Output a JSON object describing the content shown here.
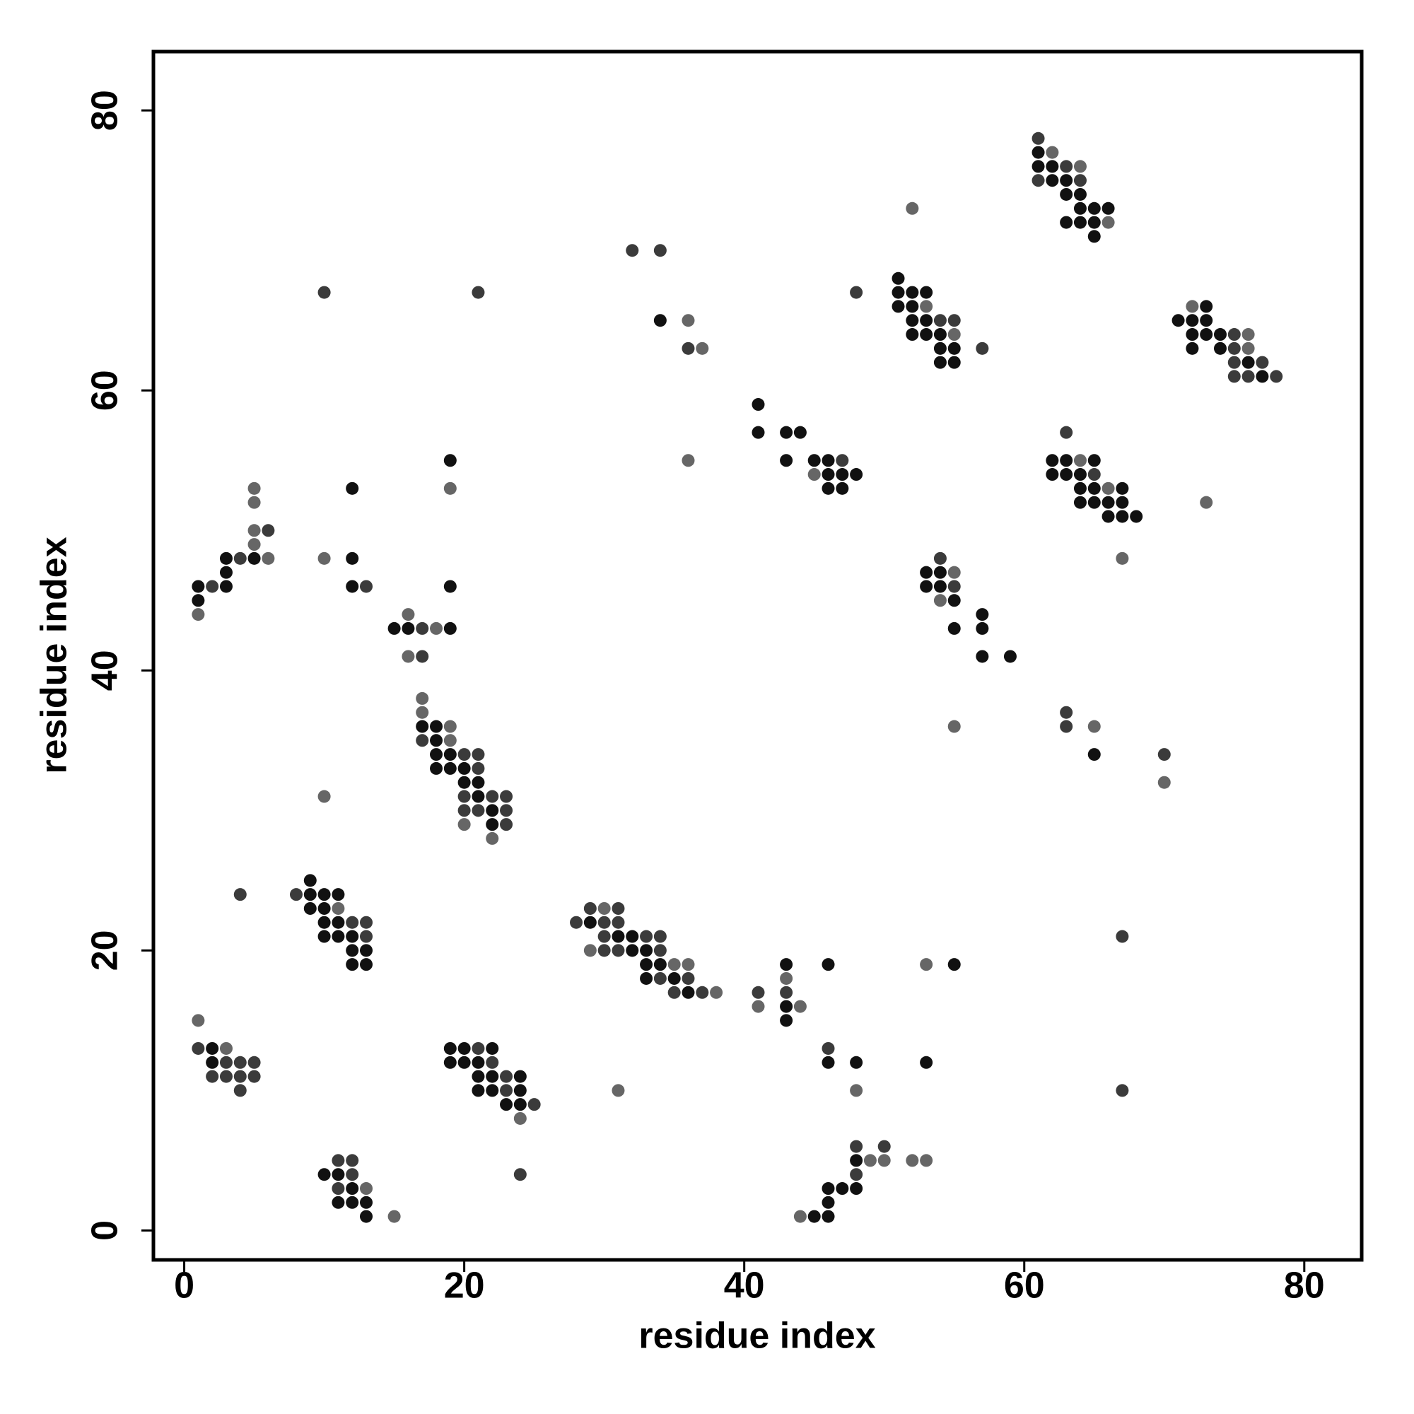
{
  "chart_data": {
    "type": "scatter",
    "xlabel": "residue index",
    "ylabel": "residue index",
    "xlim": [
      -2.2,
      84.1
    ],
    "ylim": [
      -2.1,
      84.2
    ],
    "xticks": [
      0,
      20,
      40,
      60,
      80
    ],
    "yticks": [
      0,
      20,
      40,
      60,
      80
    ],
    "x": [
      1,
      1,
      2,
      3,
      2,
      3,
      4,
      5,
      2,
      3,
      4,
      5,
      4,
      4,
      8,
      9,
      9,
      10,
      11,
      9,
      10,
      11,
      10,
      11,
      12,
      13,
      10,
      11,
      12,
      13,
      12,
      13,
      12,
      13,
      10,
      11,
      12,
      11,
      12,
      11,
      12,
      13,
      11,
      12,
      13,
      13,
      15,
      19,
      20,
      21,
      22,
      19,
      20,
      21,
      22,
      21,
      22,
      23,
      24,
      21,
      22,
      23,
      24,
      23,
      24,
      25,
      24,
      24,
      1,
      2,
      3,
      1,
      1,
      3,
      3,
      4,
      5,
      6,
      5,
      5,
      6,
      5,
      5,
      10,
      10,
      10,
      12,
      12,
      12,
      13,
      15,
      16,
      17,
      18,
      19,
      16,
      16,
      17,
      19,
      19,
      19,
      21,
      17,
      17,
      17,
      18,
      19,
      17,
      18,
      19,
      18,
      19,
      20,
      21,
      18,
      19,
      20,
      21,
      20,
      21,
      20,
      21,
      22,
      23,
      20,
      21,
      22,
      23,
      20,
      22,
      23,
      22,
      28,
      29,
      30,
      31,
      29,
      30,
      31,
      29,
      30,
      31,
      30,
      31,
      32,
      33,
      34,
      32,
      33,
      34,
      33,
      34,
      35,
      36,
      33,
      34,
      35,
      36,
      35,
      36,
      37,
      38,
      31,
      32,
      34,
      34,
      36,
      36,
      37,
      36,
      41,
      41,
      43,
      43,
      43,
      43,
      44,
      43,
      46,
      46,
      46,
      48,
      48,
      44,
      45,
      46,
      46,
      46,
      47,
      48,
      48,
      48,
      48,
      49,
      50,
      50,
      52,
      53,
      53,
      55,
      53,
      41,
      41,
      43,
      44,
      43,
      45,
      46,
      47,
      45,
      46,
      47,
      48,
      46,
      47,
      48,
      51,
      51,
      52,
      53,
      51,
      52,
      53,
      52,
      53,
      54,
      55,
      52,
      53,
      54,
      55,
      54,
      55,
      54,
      55,
      57,
      52,
      53,
      54,
      54,
      55,
      53,
      54,
      55,
      54,
      55,
      55,
      57,
      57,
      57,
      59,
      55,
      61,
      61,
      62,
      61,
      62,
      63,
      64,
      61,
      62,
      63,
      64,
      63,
      64,
      64,
      65,
      66,
      63,
      64,
      65,
      66,
      65,
      62,
      63,
      64,
      65,
      62,
      63,
      64,
      65,
      63,
      64,
      65,
      66,
      67,
      64,
      65,
      66,
      67,
      66,
      67,
      68,
      67,
      73,
      63,
      63,
      65,
      65,
      70,
      70,
      67,
      67,
      71,
      72,
      73,
      72,
      73,
      72,
      73,
      74,
      75,
      76,
      72,
      74,
      75,
      76,
      75,
      76,
      77,
      75,
      76,
      77,
      78
    ],
    "values": [
      15,
      13,
      13,
      13,
      12,
      12,
      12,
      12,
      11,
      11,
      11,
      11,
      10,
      24,
      24,
      25,
      24,
      24,
      24,
      23,
      23,
      23,
      22,
      22,
      22,
      22,
      21,
      21,
      21,
      21,
      20,
      20,
      19,
      19,
      4,
      5,
      5,
      4,
      4,
      3,
      3,
      3,
      2,
      2,
      2,
      1,
      1,
      13,
      13,
      13,
      13,
      12,
      12,
      12,
      12,
      11,
      11,
      11,
      11,
      10,
      10,
      10,
      10,
      9,
      9,
      9,
      8,
      4,
      46,
      46,
      46,
      45,
      44,
      47,
      48,
      48,
      48,
      48,
      49,
      50,
      50,
      52,
      53,
      67,
      48,
      31,
      53,
      48,
      46,
      46,
      43,
      43,
      43,
      43,
      43,
      44,
      41,
      41,
      46,
      55,
      53,
      67,
      38,
      37,
      36,
      36,
      36,
      35,
      35,
      35,
      34,
      34,
      34,
      34,
      33,
      33,
      33,
      33,
      32,
      32,
      31,
      31,
      31,
      31,
      30,
      30,
      30,
      30,
      29,
      29,
      29,
      28,
      22,
      23,
      23,
      23,
      22,
      22,
      22,
      20,
      20,
      20,
      21,
      21,
      21,
      21,
      21,
      20,
      20,
      20,
      19,
      19,
      19,
      19,
      18,
      18,
      18,
      18,
      17,
      17,
      17,
      17,
      10,
      70,
      70,
      65,
      65,
      63,
      63,
      55,
      17,
      16,
      19,
      18,
      17,
      16,
      16,
      15,
      19,
      13,
      12,
      12,
      10,
      1,
      1,
      1,
      2,
      3,
      3,
      3,
      4,
      5,
      6,
      5,
      5,
      6,
      5,
      5,
      19,
      19,
      12,
      59,
      57,
      57,
      57,
      55,
      55,
      55,
      55,
      54,
      54,
      54,
      54,
      53,
      53,
      67,
      68,
      67,
      67,
      67,
      66,
      66,
      66,
      65,
      65,
      65,
      65,
      64,
      64,
      64,
      64,
      63,
      63,
      62,
      62,
      63,
      73,
      47,
      48,
      47,
      47,
      46,
      46,
      46,
      45,
      45,
      43,
      44,
      43,
      41,
      41,
      36,
      78,
      77,
      77,
      76,
      76,
      76,
      76,
      75,
      75,
      75,
      75,
      74,
      74,
      73,
      73,
      73,
      72,
      72,
      72,
      72,
      71,
      55,
      55,
      55,
      55,
      54,
      54,
      54,
      54,
      57,
      53,
      53,
      53,
      53,
      52,
      52,
      52,
      52,
      51,
      51,
      51,
      48,
      52,
      37,
      36,
      36,
      34,
      34,
      32,
      21,
      10,
      65,
      66,
      66,
      65,
      65,
      64,
      64,
      64,
      64,
      64,
      63,
      63,
      63,
      63,
      62,
      62,
      62,
      61,
      61,
      61,
      61
    ],
    "colors": [
      "#666",
      "#3b3b3b",
      "#111",
      "#666",
      "#111",
      "#3b3b3b",
      "#3b3b3b",
      "#3b3b3b",
      "#3b3b3b",
      "#3b3b3b",
      "#3b3b3b",
      "#3b3b3b",
      "#3b3b3b",
      "#3b3b3b",
      "#3b3b3b",
      "#111",
      "#111",
      "#111",
      "#111",
      "#111",
      "#111",
      "#666",
      "#111",
      "#111",
      "#3b3b3b",
      "#3b3b3b",
      "#111",
      "#111",
      "#111",
      "#3b3b3b",
      "#111",
      "#111",
      "#111",
      "#111",
      "#111",
      "#3b3b3b",
      "#3b3b3b",
      "#111",
      "#3b3b3b",
      "#3b3b3b",
      "#111",
      "#666",
      "#111",
      "#111",
      "#111",
      "#111",
      "#666",
      "#111",
      "#111",
      "#3b3b3b",
      "#111",
      "#111",
      "#111",
      "#111",
      "#3b3b3b",
      "#111",
      "#111",
      "#3b3b3b",
      "#111",
      "#111",
      "#111",
      "#3b3b3b",
      "#111",
      "#111",
      "#111",
      "#3b3b3b",
      "#666",
      "#3b3b3b",
      "#111",
      "#3b3b3b",
      "#111",
      "#111",
      "#666",
      "#111",
      "#111",
      "#3b3b3b",
      "#111",
      "#666",
      "#666",
      "#666",
      "#3b3b3b",
      "#666",
      "#666",
      "#3b3b3b",
      "#666",
      "#666",
      "#111",
      "#111",
      "#111",
      "#3b3b3b",
      "#111",
      "#111",
      "#3b3b3b",
      "#666",
      "#111",
      "#666",
      "#666",
      "#3b3b3b",
      "#111",
      "#111",
      "#666",
      "#3b3b3b",
      "#666",
      "#666",
      "#111",
      "#111",
      "#666",
      "#3b3b3b",
      "#111",
      "#666",
      "#111",
      "#111",
      "#3b3b3b",
      "#3b3b3b",
      "#111",
      "#111",
      "#111",
      "#3b3b3b",
      "#111",
      "#111",
      "#3b3b3b",
      "#111",
      "#3b3b3b",
      "#3b3b3b",
      "#3b3b3b",
      "#3b3b3b",
      "#111",
      "#3b3b3b",
      "#666",
      "#111",
      "#3b3b3b",
      "#666",
      "#3b3b3b",
      "#3b3b3b",
      "#666",
      "#3b3b3b",
      "#111",
      "#3b3b3b",
      "#3b3b3b",
      "#666",
      "#3b3b3b",
      "#3b3b3b",
      "#3b3b3b",
      "#111",
      "#111",
      "#3b3b3b",
      "#3b3b3b",
      "#111",
      "#111",
      "#3b3b3b",
      "#111",
      "#111",
      "#666",
      "#666",
      "#111",
      "#3b3b3b",
      "#111",
      "#3b3b3b",
      "#3b3b3b",
      "#111",
      "#3b3b3b",
      "#666",
      "#666",
      "#3b3b3b",
      "#3b3b3b",
      "#111",
      "#666",
      "#3b3b3b",
      "#666",
      "#666",
      "#3b3b3b",
      "#666",
      "#111",
      "#666",
      "#3b3b3b",
      "#111",
      "#666",
      "#111",
      "#111",
      "#3b3b3b",
      "#111",
      "#111",
      "#666",
      "#666",
      "#111",
      "#111",
      "#111",
      "#111",
      "#111",
      "#111",
      "#3b3b3b",
      "#111",
      "#3b3b3b",
      "#666",
      "#666",
      "#3b3b3b",
      "#666",
      "#666",
      "#666",
      "#111",
      "#111",
      "#111",
      "#111",
      "#111",
      "#111",
      "#111",
      "#111",
      "#111",
      "#3b3b3b",
      "#666",
      "#111",
      "#111",
      "#111",
      "#111",
      "#111",
      "#3b3b3b",
      "#111",
      "#111",
      "#111",
      "#111",
      "#111",
      "#111",
      "#666",
      "#111",
      "#111",
      "#3b3b3b",
      "#3b3b3b",
      "#111",
      "#111",
      "#111",
      "#666",
      "#111",
      "#111",
      "#111",
      "#111",
      "#3b3b3b",
      "#666",
      "#111",
      "#3b3b3b",
      "#111",
      "#666",
      "#111",
      "#111",
      "#3b3b3b",
      "#666",
      "#111",
      "#111",
      "#111",
      "#111",
      "#111",
      "#111",
      "#666",
      "#3b3b3b",
      "#111",
      "#666",
      "#111",
      "#111",
      "#3b3b3b",
      "#666",
      "#3b3b3b",
      "#111",
      "#111",
      "#3b3b3b",
      "#111",
      "#111",
      "#111",
      "#111",
      "#111",
      "#111",
      "#111",
      "#111",
      "#666",
      "#111",
      "#111",
      "#111",
      "#666",
      "#111",
      "#111",
      "#111",
      "#111",
      "#3b3b3b",
      "#3b3b3b",
      "#111",
      "#111",
      "#666",
      "#111",
      "#111",
      "#111",
      "#111",
      "#111",
      "#111",
      "#111",
      "#111",
      "#666",
      "#666",
      "#3b3b3b",
      "#3b3b3b",
      "#666",
      "#111",
      "#3b3b3b",
      "#666",
      "#3b3b3b",
      "#3b3b3b",
      "#111",
      "#666",
      "#111",
      "#111",
      "#111",
      "#111",
      "#111",
      "#111",
      "#3b3b3b",
      "#666",
      "#111",
      "#111",
      "#3b3b3b",
      "#666",
      "#3b3b3b",
      "#111",
      "#3b3b3b",
      "#3b3b3b",
      "#3b3b3b",
      "#111",
      "#3b3b3b"
    ]
  }
}
